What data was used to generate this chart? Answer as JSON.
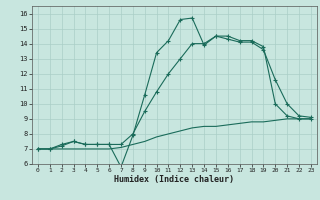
{
  "xlabel": "Humidex (Indice chaleur)",
  "bg_color": "#c8e6df",
  "grid_color": "#aacfc8",
  "line_color": "#1a6b5a",
  "xlim": [
    -0.5,
    23.5
  ],
  "ylim": [
    6,
    16.5
  ],
  "xticks": [
    0,
    1,
    2,
    3,
    4,
    5,
    6,
    7,
    8,
    9,
    10,
    11,
    12,
    13,
    14,
    15,
    16,
    17,
    18,
    19,
    20,
    21,
    22,
    23
  ],
  "yticks": [
    6,
    7,
    8,
    9,
    10,
    11,
    12,
    13,
    14,
    15,
    16
  ],
  "series1_x": [
    0,
    1,
    2,
    3,
    4,
    5,
    6,
    7,
    8,
    9,
    10,
    11,
    12,
    13,
    14,
    15,
    16,
    17,
    18,
    19,
    20,
    21,
    22,
    23
  ],
  "series1_y": [
    7.0,
    7.0,
    7.3,
    7.5,
    7.3,
    7.3,
    7.3,
    5.8,
    7.9,
    10.6,
    13.4,
    14.2,
    15.6,
    15.7,
    13.9,
    14.5,
    14.3,
    14.1,
    14.1,
    13.6,
    11.6,
    10.0,
    9.2,
    9.1
  ],
  "series2_x": [
    0,
    1,
    2,
    3,
    4,
    5,
    6,
    7,
    8,
    9,
    10,
    11,
    12,
    13,
    14,
    15,
    16,
    17,
    18,
    19,
    20,
    21,
    22,
    23
  ],
  "series2_y": [
    7.0,
    7.0,
    7.2,
    7.5,
    7.3,
    7.3,
    7.3,
    7.3,
    8.0,
    9.5,
    10.8,
    12.0,
    13.0,
    14.0,
    14.0,
    14.5,
    14.5,
    14.2,
    14.2,
    13.8,
    10.0,
    9.2,
    9.0,
    9.0
  ],
  "series3_x": [
    0,
    1,
    2,
    3,
    4,
    5,
    6,
    7,
    8,
    9,
    10,
    11,
    12,
    13,
    14,
    15,
    16,
    17,
    18,
    19,
    20,
    21,
    22,
    23
  ],
  "series3_y": [
    7.0,
    7.0,
    7.0,
    7.0,
    7.0,
    7.0,
    7.0,
    7.1,
    7.3,
    7.5,
    7.8,
    8.0,
    8.2,
    8.4,
    8.5,
    8.5,
    8.6,
    8.7,
    8.8,
    8.8,
    8.9,
    9.0,
    9.0,
    9.0
  ]
}
